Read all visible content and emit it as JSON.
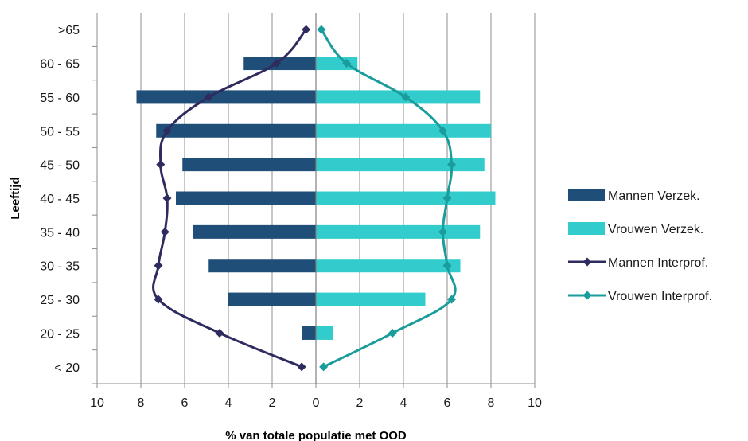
{
  "chart_data": {
    "type": "bar",
    "orientation": "horizontal-population-pyramid",
    "categories": [
      "< 20",
      "20 - 25",
      "25 - 30",
      "30 - 35",
      "35 - 40",
      "40 - 45",
      "45 - 50",
      "50 - 55",
      "55 - 60",
      "60 - 65",
      ">65"
    ],
    "xlabel": "% van totale populatie met OOD",
    "ylabel": "Leeftijd",
    "xlim": [
      -10,
      10
    ],
    "xticks": [
      {
        "value": -10,
        "label": "10"
      },
      {
        "value": -8,
        "label": "8"
      },
      {
        "value": -6,
        "label": "6"
      },
      {
        "value": -4,
        "label": "4"
      },
      {
        "value": -2,
        "label": "2"
      },
      {
        "value": 0,
        "label": "0"
      },
      {
        "value": 2,
        "label": "2"
      },
      {
        "value": 4,
        "label": "4"
      },
      {
        "value": 6,
        "label": "6"
      },
      {
        "value": 8,
        "label": "8"
      },
      {
        "value": 10,
        "label": "10"
      }
    ],
    "grid": "vertical",
    "legend_position": "right",
    "series": [
      {
        "name": "Mannen Verzek.",
        "kind": "bar",
        "color": "#1f4e79",
        "values": [
          0,
          -0.65,
          -4.0,
          -4.9,
          -5.6,
          -6.4,
          -6.1,
          -7.3,
          -8.2,
          -3.3,
          0
        ]
      },
      {
        "name": "Vrouwen Verzek.",
        "kind": "bar",
        "color": "#33cccc",
        "values": [
          0,
          0.8,
          5.0,
          6.6,
          7.5,
          8.2,
          7.7,
          8.0,
          7.5,
          1.9,
          0
        ]
      },
      {
        "name": "Mannen Interprof.",
        "kind": "line",
        "color": "#2e2b5f",
        "values": [
          -0.65,
          -4.4,
          -7.2,
          -7.2,
          -6.9,
          -6.8,
          -7.1,
          -6.8,
          -4.9,
          -1.8,
          -0.45
        ]
      },
      {
        "name": "Vrouwen Interprof.",
        "kind": "line",
        "color": "#1a9c9c",
        "values": [
          0.35,
          3.5,
          6.2,
          6.0,
          5.8,
          6.0,
          6.2,
          5.8,
          4.1,
          1.4,
          0.25
        ]
      }
    ]
  }
}
